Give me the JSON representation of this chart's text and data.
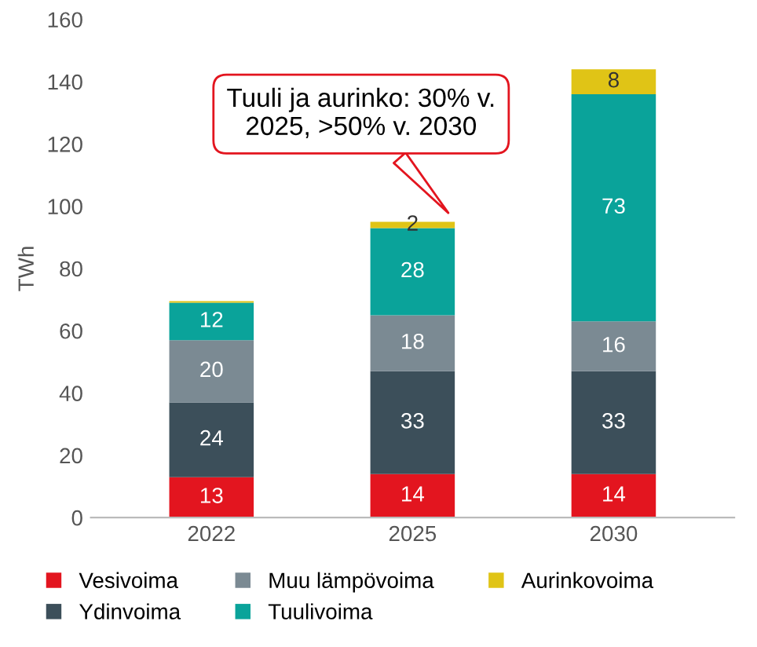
{
  "chart_data": {
    "type": "bar",
    "stacked": true,
    "ylabel": "TWh",
    "categories": [
      "2022",
      "2025",
      "2030"
    ],
    "series": [
      {
        "name": "Vesivoima",
        "color": "#e3151f",
        "values": [
          13,
          14,
          14
        ],
        "value_labels": [
          "13",
          "14",
          "14"
        ]
      },
      {
        "name": "Ydinvoima",
        "color": "#3c4f5a",
        "values": [
          24,
          33,
          33
        ],
        "value_labels": [
          "24",
          "33",
          "33"
        ]
      },
      {
        "name": "Muu lämpövoima",
        "color": "#7b8a93",
        "values": [
          20,
          18,
          16
        ],
        "value_labels": [
          "20",
          "18",
          "16"
        ]
      },
      {
        "name": "Tuulivoima",
        "color": "#0aa39a",
        "values": [
          12,
          28,
          73
        ],
        "value_labels": [
          "12",
          "28",
          "73"
        ]
      },
      {
        "name": "Aurinkovoima",
        "color": "#e0c416",
        "values": [
          0.5,
          2,
          8
        ],
        "value_labels": [
          null,
          "2",
          "8"
        ]
      }
    ],
    "ylim": [
      0,
      160
    ],
    "yticks": [
      0,
      20,
      40,
      60,
      80,
      100,
      120,
      140,
      160
    ],
    "legend": "bottom",
    "annotations": [
      "Tuuli ja aurinko: 30% v.\n2025, >50% v. 2030"
    ]
  }
}
